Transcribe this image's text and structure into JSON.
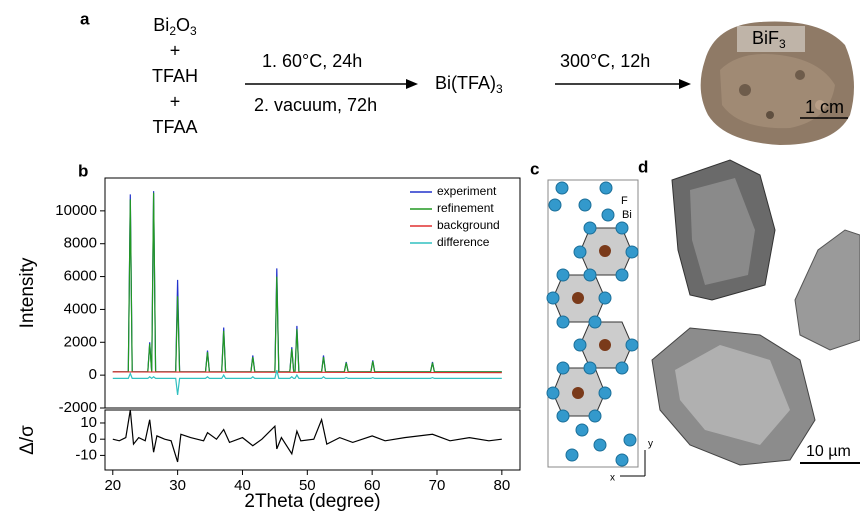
{
  "panel_a": {
    "label": "a",
    "reactants": [
      [
        "Bi",
        "2",
        "O",
        "3"
      ],
      "+",
      "TFAH",
      "+",
      "TFAA"
    ],
    "step1": [
      "1. 60°C, 24h",
      "2. vacuum, 72h"
    ],
    "intermediate": [
      "Bi(TFA)",
      "3"
    ],
    "step2": "300°C, 12h",
    "photo_label": [
      "BiF",
      "3"
    ],
    "scale_bar": "1 cm"
  },
  "panel_b": {
    "label": "b"
  },
  "chart_data": [
    {
      "type": "line",
      "ylabel": "Intensity",
      "legend": "upper right",
      "xlim": [
        18.8,
        82.8
      ],
      "ylim": [
        -2000,
        12000
      ],
      "yticks": [
        -2000,
        0,
        2000,
        4000,
        6000,
        8000,
        10000
      ],
      "series": [
        {
          "name": "experiment",
          "color": "#2233cc",
          "x": [
            20,
            22.4,
            22.7,
            23.0,
            25.4,
            25.7,
            26.0,
            26.3,
            26.6,
            29.7,
            30.0,
            30.3,
            34.3,
            34.6,
            34.9,
            36.8,
            37.1,
            37.4,
            41.3,
            41.6,
            41.9,
            45.0,
            45.3,
            45.6,
            47.3,
            47.6,
            47.9,
            48.1,
            48.4,
            48.7,
            52.2,
            52.5,
            52.8,
            55.7,
            56.0,
            56.3,
            59.8,
            60.1,
            60.4,
            69.0,
            69.3,
            69.6,
            80
          ],
          "values": [
            200,
            200,
            11000,
            200,
            200,
            2000,
            200,
            11200,
            200,
            200,
            5800,
            200,
            200,
            1500,
            200,
            200,
            2900,
            200,
            200,
            1200,
            200,
            200,
            6500,
            200,
            200,
            1700,
            200,
            200,
            3000,
            200,
            200,
            1200,
            200,
            200,
            800,
            200,
            200,
            900,
            200,
            200,
            800,
            200,
            200
          ]
        },
        {
          "name": "refinement",
          "color": "#229922",
          "x": [
            20,
            22.4,
            22.7,
            23.0,
            25.4,
            25.7,
            26.0,
            26.3,
            26.6,
            29.7,
            30.0,
            30.3,
            34.3,
            34.6,
            34.9,
            36.8,
            37.1,
            37.4,
            41.3,
            41.6,
            41.9,
            45.0,
            45.3,
            45.6,
            47.3,
            47.6,
            47.9,
            48.1,
            48.4,
            48.7,
            52.2,
            52.5,
            52.8,
            55.7,
            56.0,
            56.3,
            59.8,
            60.1,
            60.4,
            69.0,
            69.3,
            69.6,
            80
          ],
          "values": [
            200,
            200,
            10700,
            200,
            200,
            1900,
            200,
            11100,
            200,
            200,
            4800,
            200,
            200,
            1400,
            200,
            200,
            2700,
            200,
            200,
            1100,
            200,
            200,
            6000,
            200,
            200,
            1600,
            200,
            200,
            2800,
            200,
            200,
            1100,
            200,
            200,
            750,
            200,
            200,
            850,
            200,
            200,
            750,
            200,
            200
          ]
        },
        {
          "name": "background",
          "color": "#e03030",
          "x": [
            20,
            80
          ],
          "values": [
            200,
            150
          ]
        },
        {
          "name": "difference",
          "color": "#30c0c0",
          "x": [
            20,
            22.4,
            22.7,
            23.0,
            25.4,
            25.7,
            26.0,
            26.3,
            26.6,
            29.7,
            30.0,
            30.3,
            34.3,
            34.6,
            34.9,
            36.8,
            37.1,
            37.4,
            41.3,
            41.6,
            41.9,
            45.0,
            45.3,
            45.6,
            47.3,
            47.6,
            47.9,
            48.1,
            48.4,
            48.7,
            52.2,
            52.5,
            52.8,
            55.7,
            56.0,
            56.3,
            59.8,
            60.1,
            60.4,
            69.0,
            69.3,
            69.6,
            80
          ],
          "values": [
            -200,
            -200,
            100,
            -200,
            -200,
            -100,
            -200,
            -100,
            -200,
            -200,
            -1200,
            -200,
            -200,
            -100,
            -200,
            -200,
            0,
            -200,
            -200,
            -100,
            -200,
            -200,
            300,
            -200,
            -200,
            -100,
            -200,
            -200,
            0,
            -200,
            -200,
            -100,
            -200,
            -200,
            -150,
            -200,
            -200,
            -150,
            -200,
            -200,
            -150,
            -200,
            -200
          ]
        }
      ]
    },
    {
      "type": "line",
      "ylabel": "Δ/σ",
      "xlabel": "2Theta (degree)",
      "xlim": [
        18.8,
        82.8
      ],
      "ylim": [
        -19,
        18
      ],
      "xticks": [
        20,
        30,
        40,
        50,
        60,
        70,
        80
      ],
      "yticks": [
        -10,
        0,
        10
      ],
      "series": [
        {
          "color": "#000000",
          "x": [
            20,
            21,
            22,
            22.7,
            23.2,
            24,
            25,
            25.7,
            26.3,
            26.8,
            28,
            29,
            30,
            30.5,
            32,
            34,
            34.6,
            36,
            37.1,
            38,
            40,
            41.6,
            43,
            45,
            45.3,
            46,
            47.6,
            48.4,
            49,
            51,
            52.2,
            53,
            55,
            57,
            60,
            62,
            65,
            69.3,
            72,
            75,
            78,
            80
          ],
          "values": [
            0,
            -1,
            1,
            18,
            -3,
            1,
            -1,
            12,
            -8,
            2,
            0,
            -1,
            -14,
            3,
            1,
            -1,
            4,
            0,
            6,
            -2,
            1,
            -4,
            0,
            8,
            -6,
            1,
            -9,
            5,
            -1,
            0,
            12,
            -3,
            1,
            -2,
            2,
            -1,
            1,
            3,
            -1,
            1,
            -1,
            0
          ]
        }
      ]
    }
  ],
  "panel_c": {
    "label": "c",
    "atom_labels": [
      "F",
      "Bi"
    ],
    "axes": [
      "y",
      "x"
    ]
  },
  "panel_d": {
    "label": "d",
    "scale_bar": "10 µm"
  }
}
